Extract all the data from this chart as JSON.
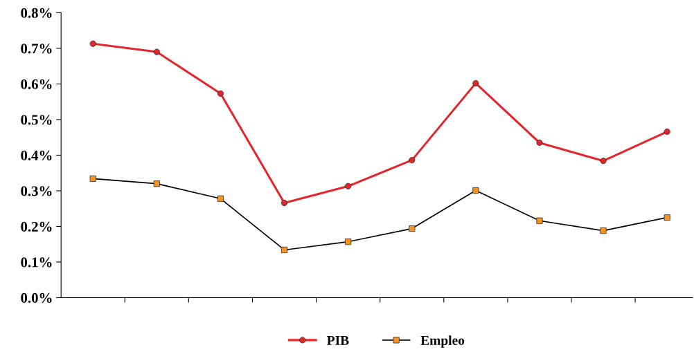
{
  "chart_data": {
    "type": "line",
    "categories": [
      null,
      null,
      null,
      null,
      null,
      null,
      null,
      null,
      null,
      null
    ],
    "series": [
      {
        "name": "PIB",
        "color": "#e3262b",
        "marker": "circle",
        "values": [
          0.713,
          0.69,
          0.573,
          0.266,
          0.313,
          0.386,
          0.602,
          0.435,
          0.384,
          0.466
        ]
      },
      {
        "name": "Empleo",
        "color": "#f7931e",
        "marker": "square",
        "values": [
          0.334,
          0.32,
          0.278,
          0.134,
          0.157,
          0.194,
          0.301,
          0.216,
          0.188,
          0.225
        ]
      }
    ],
    "ylim": [
      0,
      0.8
    ],
    "yticks": [
      {
        "value": 0,
        "label": "0.0%"
      },
      {
        "value": 0.1,
        "label": "0.1%"
      },
      {
        "value": 0.2,
        "label": "0.2%"
      },
      {
        "value": 0.3,
        "label": "0.3%"
      },
      {
        "value": 0.4,
        "label": "0.4%"
      },
      {
        "value": 0.5,
        "label": "0.5%"
      },
      {
        "value": 0.6,
        "label": "0.6%"
      },
      {
        "value": 0.7,
        "label": "0.7%"
      },
      {
        "value": 0.8,
        "label": "0.8%"
      }
    ],
    "tick_labels": "y",
    "grid": false,
    "legend": "bottom"
  }
}
